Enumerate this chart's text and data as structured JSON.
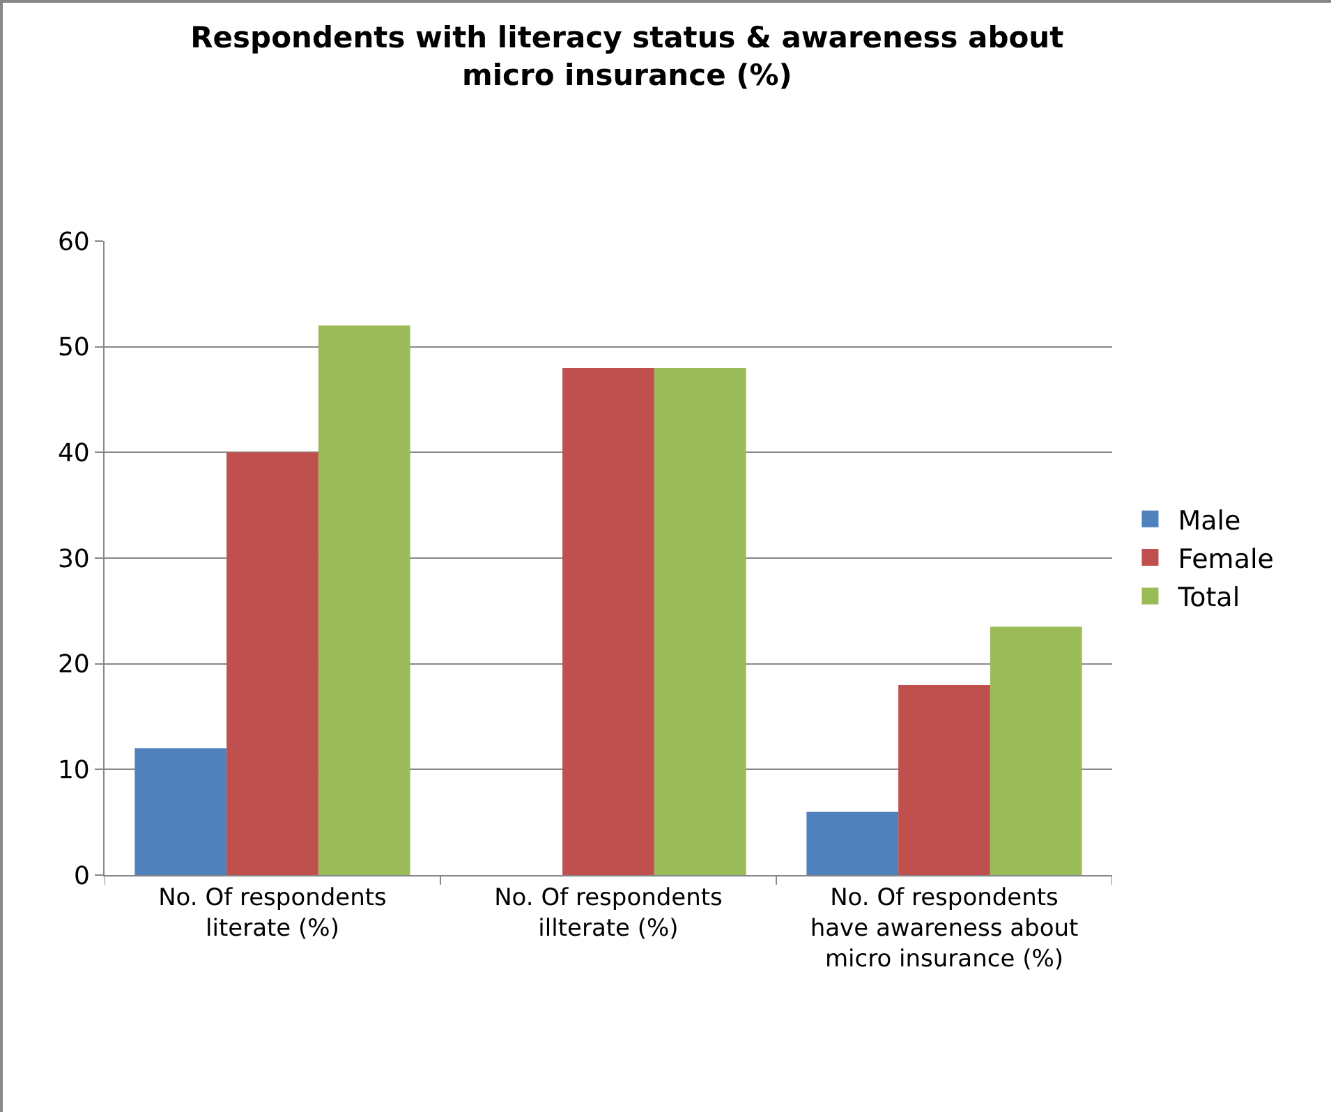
{
  "chart_data": {
    "type": "bar",
    "title": "Respondents with literacy status & awareness about micro insurance (%)",
    "categories": [
      "No. Of respondents literate (%)",
      "No. Of respondents illterate (%)",
      "No. Of respondents have awareness about micro insurance (%)"
    ],
    "series": [
      {
        "name": "Male",
        "color": "#4f81bd",
        "values": [
          12,
          0,
          6
        ]
      },
      {
        "name": "Female",
        "color": "#c0504d",
        "values": [
          40,
          48,
          18
        ]
      },
      {
        "name": "Total",
        "color": "#9bbb59",
        "values": [
          52,
          48,
          23.5
        ]
      }
    ],
    "ylim": [
      0,
      60
    ],
    "yticks": [
      0,
      10,
      20,
      30,
      40,
      50,
      60
    ],
    "grid": "y",
    "legend": "right"
  }
}
